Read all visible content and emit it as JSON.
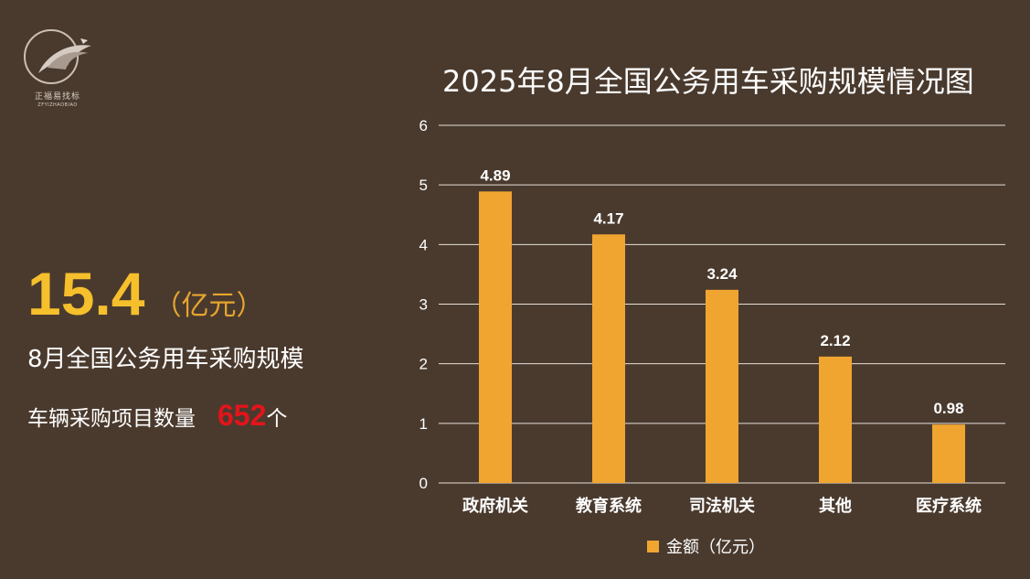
{
  "brand": {
    "name_cn": "正福易找标",
    "name_en": "ZFYIZHAOBIAO"
  },
  "summary": {
    "total_value": "15.4",
    "total_unit": "（亿元）",
    "total_desc": "8月全国公务用车采购规模",
    "count_label": "车辆采购项目数量",
    "count_value": "652",
    "count_suffix": "个"
  },
  "colors": {
    "bar": "#f0a530",
    "accent": "#f6c02c",
    "count": "#e3141b",
    "background": "#4a3a2e"
  },
  "chart_data": {
    "type": "bar",
    "title": "2025年8月全国公务用车采购规模情况图",
    "categories": [
      "政府机关",
      "教育系统",
      "司法机关",
      "其他",
      "医疗系统"
    ],
    "series": [
      {
        "name": "金额（亿元）",
        "values": [
          4.89,
          4.17,
          3.24,
          2.12,
          0.98
        ]
      }
    ],
    "data_labels": [
      "4.89",
      "4.17",
      "3.24",
      "2.12",
      "0.98"
    ],
    "ylim": [
      0,
      6
    ],
    "yticks": [
      0,
      1,
      2,
      3,
      4,
      5,
      6
    ],
    "grid": true,
    "legend": "bottom-center"
  }
}
